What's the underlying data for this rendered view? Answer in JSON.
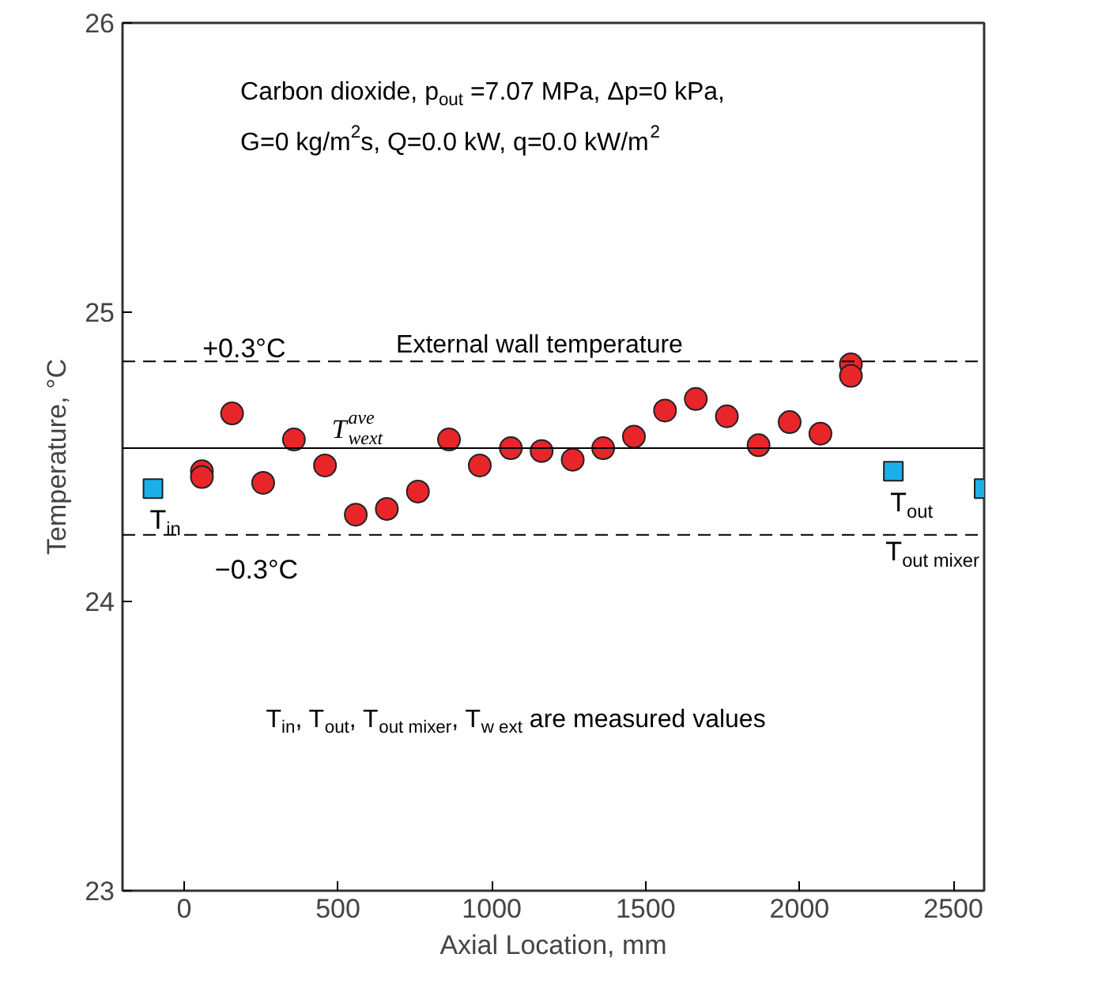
{
  "chart_data": {
    "type": "scatter",
    "xlabel": "Axial Location, mm",
    "ylabel": "Temperature, °C",
    "xlim": [
      -200,
      2600
    ],
    "xticks": [
      0,
      500,
      1000,
      1500,
      2000,
      2500
    ],
    "ylim": [
      23,
      26
    ],
    "yticks": [
      23,
      24,
      25,
      26
    ],
    "grid": false,
    "series": [
      {
        "color": "#e8262a",
        "marker": "circle",
        "x": [
          58,
          58,
          156,
          257,
          357,
          458,
          558,
          659,
          760,
          861,
          961,
          1062,
          1162,
          1263,
          1362,
          1462,
          1563,
          1663,
          1764,
          1867,
          1968,
          2068,
          2167,
          2167
        ],
        "values": [
          24.45,
          24.43,
          24.65,
          24.41,
          24.56,
          24.47,
          24.3,
          24.32,
          24.38,
          24.56,
          24.47,
          24.53,
          24.52,
          24.49,
          24.53,
          24.57,
          24.66,
          24.7,
          24.64,
          24.54,
          24.62,
          24.58,
          24.82,
          24.78
        ]
      },
      {
        "color": "#1ab0e8",
        "marker": "square",
        "x": [
          -101,
          2305,
          2600
        ],
        "values": [
          24.39,
          24.45,
          24.39
        ]
      }
    ],
    "ref_lines": [
      {
        "axis": "y",
        "value": 24.53,
        "label": "T$_{wext}$$^{ave}$",
        "line_style": "solid"
      },
      {
        "axis": "y",
        "value": 24.83,
        "label": "+0.3°C",
        "line_style": "dashed"
      },
      {
        "axis": "y",
        "value": 24.23,
        "label": "−0.3°C",
        "line_style": "dashed"
      }
    ],
    "annotations": [
      "Carbon dioxide, p$_{out}$ =7.07 MPa,  Δp=0 kPa,",
      "G=0 kg/m$^{2}$s, Q=0.0 kW, q=0.0 kW/m$^{2}$",
      "External wall temperature",
      "T$_{in}$, T$_{out}$, T$_{out mixer}$, T$_{w ext}$ are measured values",
      {
        "text": "T$_{in}$",
        "x": -101,
        "y": 24.39
      },
      {
        "text": "T$_{out}$",
        "x": 2305,
        "y": 24.45
      },
      {
        "text": "T$_{out mixer}$",
        "x": 2600,
        "y": 24.39
      }
    ]
  }
}
